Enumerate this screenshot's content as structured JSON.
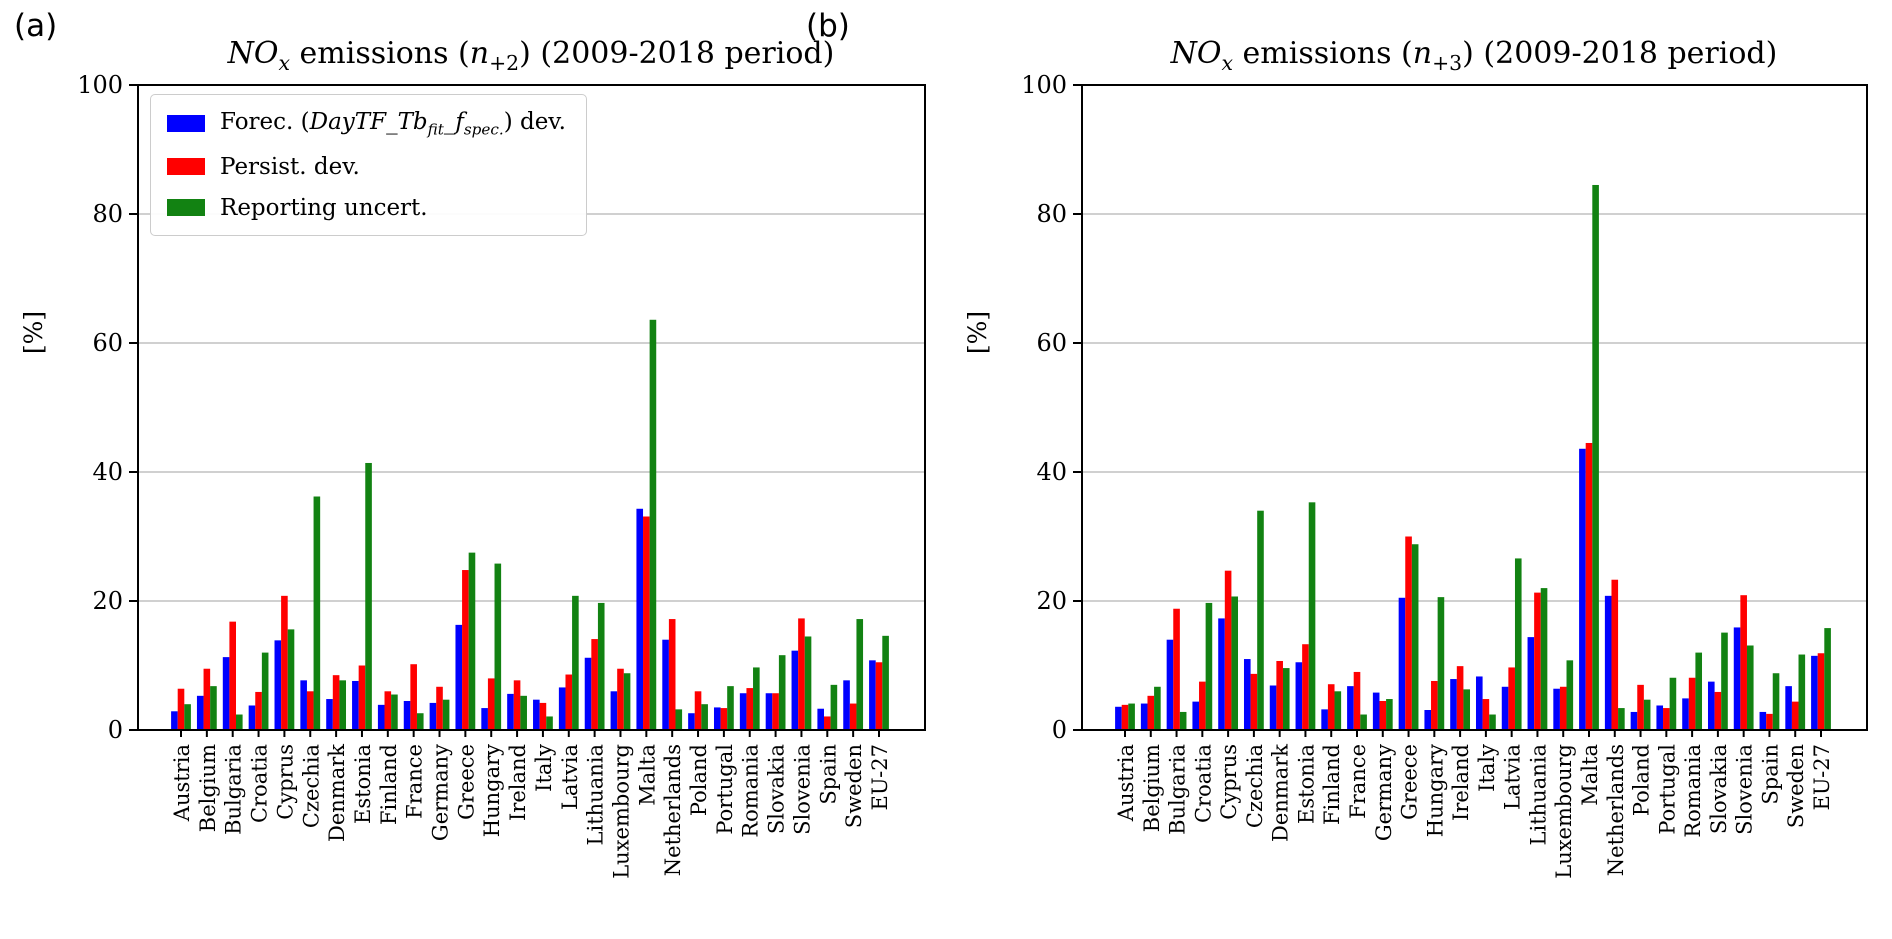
{
  "figure": {
    "panel_a_label": "(a)",
    "panel_b_label": "(b)"
  },
  "colors": {
    "forecast": "#0000ff",
    "persistence": "#ff0000",
    "reporting": "#128212",
    "grid": "#b3b3b3",
    "spine": "#000000"
  },
  "legend": {
    "item1": {
      "pre": "Forec. (",
      "italic1": "DayTF_Tb",
      "sub1": "fit",
      "italic2": "_f",
      "sub2": "spec.",
      "post": ") dev."
    },
    "item2": "Persist. dev.",
    "item3": "Reporting uncert."
  },
  "panels": [
    {
      "title": {
        "no": "NO",
        "x": "x",
        "mid": " emissions (",
        "n": "n",
        "sub": "+2",
        "end": ") (2009-2018 period)"
      },
      "ylabel": "[%]"
    },
    {
      "title": {
        "no": "NO",
        "x": "x",
        "mid": " emissions (",
        "n": "n",
        "sub": "+3",
        "end": ") (2009-2018 period)"
      },
      "ylabel": "[%]"
    }
  ],
  "chart_data": [
    {
      "type": "bar",
      "title": "NOx emissions (n+2) (2009-2018 period)",
      "ylabel": "[%]",
      "ylim": [
        0,
        100
      ],
      "yticks": [
        0,
        20,
        40,
        60,
        80,
        100
      ],
      "grid": true,
      "legend_position": "upper left",
      "categories": [
        "Austria",
        "Belgium",
        "Bulgaria",
        "Croatia",
        "Cyprus",
        "Czechia",
        "Denmark",
        "Estonia",
        "Finland",
        "France",
        "Germany",
        "Greece",
        "Hungary",
        "Ireland",
        "Italy",
        "Latvia",
        "Lithuania",
        "Luxembourg",
        "Malta",
        "Netherlands",
        "Poland",
        "Portugal",
        "Romania",
        "Slovakia",
        "Slovenia",
        "Spain",
        "Sweden",
        "EU-27"
      ],
      "series": [
        {
          "key": "forecast",
          "name": "Forec. (DayTF_Tb_fit_f_spec.) dev.",
          "values": [
            2.9,
            5.3,
            11.3,
            3.8,
            13.9,
            7.7,
            4.8,
            7.6,
            3.9,
            4.5,
            4.2,
            16.3,
            3.4,
            5.6,
            4.7,
            6.6,
            11.2,
            6.0,
            34.3,
            14.0,
            2.6,
            3.5,
            5.7,
            5.7,
            12.3,
            3.3,
            7.7,
            10.8
          ]
        },
        {
          "key": "persistence",
          "name": "Persist. dev.",
          "values": [
            6.4,
            9.5,
            16.8,
            5.9,
            20.8,
            6.0,
            8.5,
            10.0,
            6.0,
            10.2,
            6.7,
            24.8,
            8.0,
            7.7,
            4.2,
            8.6,
            14.1,
            9.5,
            33.1,
            17.2,
            6.0,
            3.4,
            6.5,
            5.7,
            17.3,
            2.1,
            4.1,
            10.5
          ]
        },
        {
          "key": "reporting",
          "name": "Reporting uncert.",
          "values": [
            4.0,
            6.8,
            2.4,
            12.0,
            15.6,
            36.2,
            7.7,
            41.4,
            5.5,
            2.6,
            4.7,
            27.5,
            25.8,
            5.3,
            2.1,
            20.8,
            19.7,
            8.8,
            63.6,
            3.2,
            4.0,
            6.8,
            9.7,
            11.6,
            14.5,
            7.0,
            17.2,
            14.6
          ]
        }
      ]
    },
    {
      "type": "bar",
      "title": "NOx emissions (n+3) (2009-2018 period)",
      "ylabel": "[%]",
      "ylim": [
        0,
        100
      ],
      "yticks": [
        0,
        20,
        40,
        60,
        80,
        100
      ],
      "grid": true,
      "legend_position": "none",
      "categories": [
        "Austria",
        "Belgium",
        "Bulgaria",
        "Croatia",
        "Cyprus",
        "Czechia",
        "Denmark",
        "Estonia",
        "Finland",
        "France",
        "Germany",
        "Greece",
        "Hungary",
        "Ireland",
        "Italy",
        "Latvia",
        "Lithuania",
        "Luxembourg",
        "Malta",
        "Netherlands",
        "Poland",
        "Portugal",
        "Romania",
        "Slovakia",
        "Slovenia",
        "Spain",
        "Sweden",
        "EU-27"
      ],
      "series": [
        {
          "key": "forecast",
          "name": "Forec. (DayTF_Tb_fit_f_spec.) dev.",
          "values": [
            3.6,
            4.1,
            14.0,
            4.4,
            17.3,
            11.0,
            6.9,
            10.5,
            3.2,
            6.8,
            5.8,
            20.5,
            3.1,
            7.9,
            8.3,
            6.7,
            14.4,
            6.4,
            43.6,
            20.8,
            2.8,
            3.8,
            4.9,
            7.5,
            15.9,
            2.8,
            6.8,
            11.5
          ]
        },
        {
          "key": "persistence",
          "name": "Persist. dev.",
          "values": [
            3.9,
            5.3,
            18.8,
            7.5,
            24.7,
            8.7,
            10.7,
            13.3,
            7.1,
            9.0,
            4.5,
            30.0,
            7.6,
            9.9,
            4.8,
            9.7,
            21.3,
            6.7,
            44.5,
            23.3,
            7.0,
            3.4,
            8.1,
            5.9,
            20.9,
            2.5,
            4.4,
            11.9
          ]
        },
        {
          "key": "reporting",
          "name": "Reporting uncert.",
          "values": [
            4.1,
            6.7,
            2.8,
            19.7,
            20.7,
            34.0,
            9.6,
            35.3,
            6.0,
            2.4,
            4.8,
            28.8,
            20.6,
            6.3,
            2.4,
            26.6,
            22.0,
            10.8,
            84.5,
            3.4,
            4.7,
            8.1,
            12.0,
            15.1,
            13.1,
            8.8,
            11.7,
            15.8
          ]
        }
      ]
    }
  ]
}
